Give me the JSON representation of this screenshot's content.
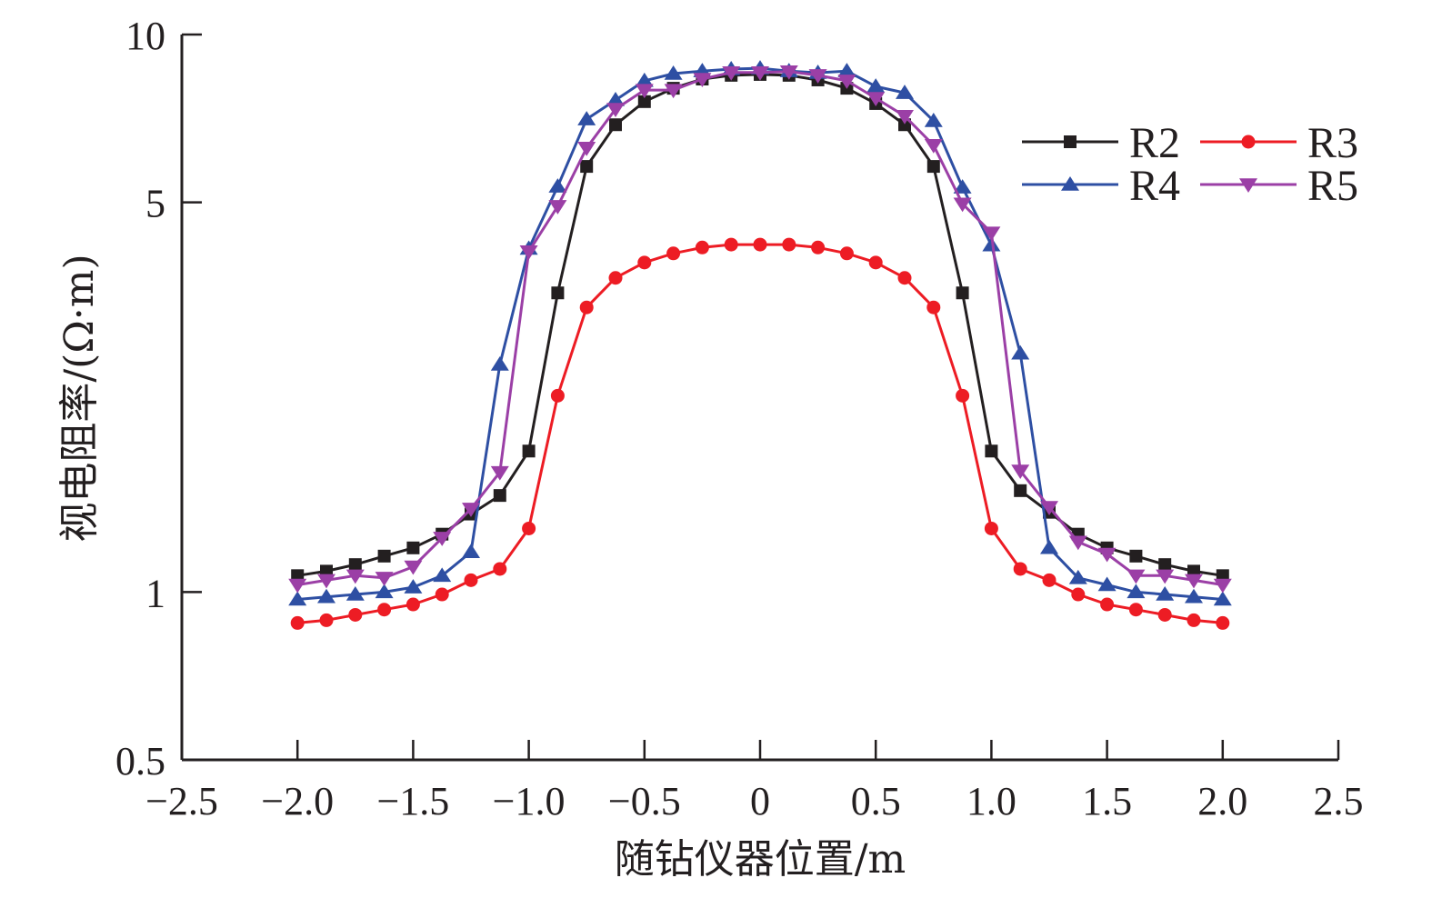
{
  "chart_data": {
    "type": "line",
    "title": "",
    "xlabel": "随钻仪器位置/m",
    "ylabel": "视电阻率/(Ω·m)",
    "xlim": [
      -2.5,
      2.5
    ],
    "ylim": [
      0.5,
      10
    ],
    "yscale": "log",
    "grid": false,
    "legend_position": "top-right",
    "x_ticks": [
      -2.5,
      -2.0,
      -1.5,
      -1.0,
      -0.5,
      0,
      0.5,
      1.0,
      1.5,
      2.0,
      2.5
    ],
    "x_tick_labels": [
      "−2.5",
      "−2.0",
      "−1.5",
      "−1.0",
      "−0.5",
      "0",
      "0.5",
      "1.0",
      "1.5",
      "2.0",
      "2.5"
    ],
    "y_ticks": [
      10,
      5,
      1,
      0.5
    ],
    "y_tick_labels": [
      "10",
      "5",
      "1",
      "0.5"
    ],
    "x": [
      -2.0,
      -1.875,
      -1.75,
      -1.625,
      -1.5,
      -1.375,
      -1.25,
      -1.125,
      -1.0,
      -0.875,
      -0.75,
      -0.625,
      -0.5,
      -0.375,
      -0.25,
      -0.125,
      0,
      0.125,
      0.25,
      0.375,
      0.5,
      0.625,
      0.75,
      0.875,
      1.0,
      1.125,
      1.25,
      1.375,
      1.5,
      1.625,
      1.75,
      1.875,
      2.0
    ],
    "series": [
      {
        "name": "R2",
        "color": "#231f20",
        "marker": "square",
        "values": [
          1.07,
          1.09,
          1.12,
          1.16,
          1.2,
          1.27,
          1.38,
          1.49,
          1.79,
          3.44,
          5.8,
          6.89,
          7.58,
          8.01,
          8.32,
          8.45,
          8.48,
          8.45,
          8.29,
          8.01,
          7.52,
          6.89,
          5.8,
          3.44,
          1.79,
          1.52,
          1.39,
          1.27,
          1.2,
          1.16,
          1.12,
          1.09,
          1.07
        ]
      },
      {
        "name": "R3",
        "color": "#ed1c24",
        "marker": "circle",
        "values": [
          0.88,
          0.89,
          0.91,
          0.93,
          0.95,
          0.99,
          1.05,
          1.1,
          1.3,
          2.25,
          3.24,
          3.66,
          3.9,
          4.05,
          4.15,
          4.2,
          4.2,
          4.2,
          4.15,
          4.05,
          3.9,
          3.66,
          3.24,
          2.25,
          1.3,
          1.1,
          1.05,
          0.99,
          0.95,
          0.93,
          0.91,
          0.89,
          0.88
        ]
      },
      {
        "name": "R4",
        "color": "#2e4fa3",
        "marker": "triangle-up",
        "values": [
          0.97,
          0.98,
          0.99,
          1.0,
          1.02,
          1.07,
          1.18,
          2.56,
          4.13,
          5.34,
          7.05,
          7.63,
          8.26,
          8.51,
          8.6,
          8.67,
          8.7,
          8.6,
          8.54,
          8.6,
          8.07,
          7.86,
          7.0,
          5.32,
          4.19,
          2.68,
          1.2,
          1.06,
          1.03,
          1.0,
          0.99,
          0.98,
          0.97
        ]
      },
      {
        "name": "R5",
        "color": "#9b3fa6",
        "marker": "triangle-down",
        "values": [
          1.03,
          1.05,
          1.07,
          1.06,
          1.11,
          1.25,
          1.41,
          1.64,
          4.08,
          4.92,
          6.26,
          7.35,
          7.95,
          7.95,
          8.32,
          8.55,
          8.55,
          8.58,
          8.45,
          8.26,
          7.69,
          7.14,
          6.33,
          4.97,
          4.41,
          1.65,
          1.42,
          1.23,
          1.17,
          1.07,
          1.07,
          1.05,
          1.03
        ]
      }
    ]
  }
}
